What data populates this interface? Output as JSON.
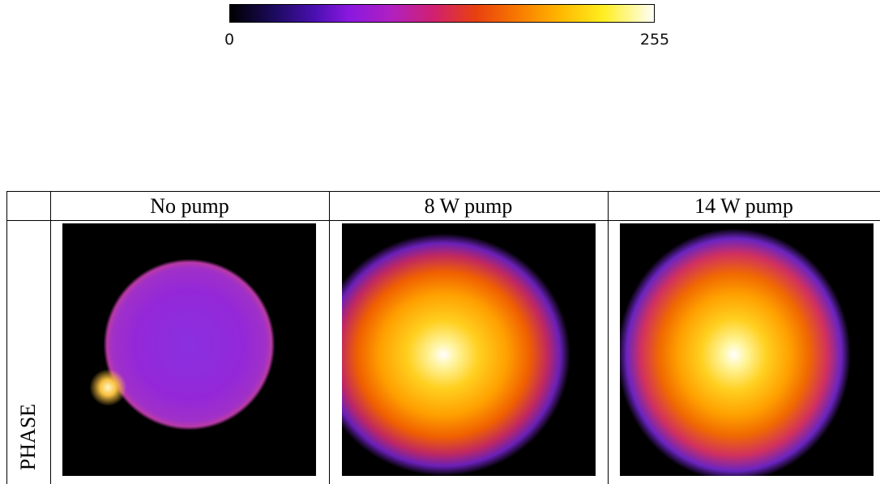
{
  "colorbar": {
    "lim": [
      0,
      255
    ],
    "ticks": [
      0,
      255
    ]
  },
  "table": {
    "columns": [
      "No pump",
      "8 W pump",
      "14 W pump"
    ],
    "row_label": "PHASE"
  }
}
